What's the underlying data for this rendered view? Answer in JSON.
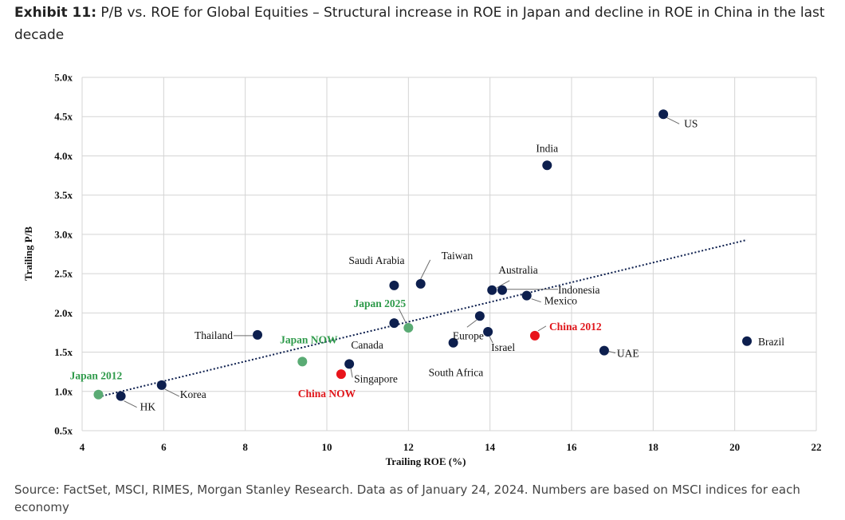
{
  "header": {
    "exhibit_label": "Exhibit 11:",
    "title": "P/B vs. ROE for Global Equities – Structural increase in ROE in Japan and decline in ROE in China in the last decade"
  },
  "footer": {
    "source": "Source: FactSet, MSCI, RIMES, Morgan Stanley Research. Data as of January 24, 2024. Numbers are based on MSCI indices for each economy"
  },
  "chart_data": {
    "type": "scatter",
    "xlabel": "Trailing ROE (%)",
    "ylabel": "Trailing P/B",
    "xlim": [
      4,
      22
    ],
    "ylim": [
      0.5,
      5.0
    ],
    "x_ticks": [
      "4",
      "6",
      "8",
      "10",
      "12",
      "14",
      "16",
      "18",
      "20",
      "22"
    ],
    "y_ticks": [
      "0.5x",
      "1.0x",
      "1.5x",
      "2.0x",
      "2.5x",
      "3.0x",
      "3.5x",
      "4.0x",
      "4.5x",
      "5.0x"
    ],
    "grid": true,
    "colors": {
      "default": "#0d1f4e",
      "japan": "#5aab74",
      "china": "#e8141b",
      "japan_label": "#2e9a4a",
      "china_label": "#e0161b"
    },
    "points": [
      {
        "label": "US",
        "x": 18.25,
        "y": 4.53,
        "group": "default"
      },
      {
        "label": "India",
        "x": 15.4,
        "y": 3.88,
        "group": "default"
      },
      {
        "label": "Taiwan",
        "x": 12.3,
        "y": 2.37,
        "group": "default"
      },
      {
        "label": "Saudi Arabia",
        "x": 11.65,
        "y": 2.35,
        "group": "default"
      },
      {
        "label": "Australia",
        "x": 14.05,
        "y": 2.29,
        "group": "default"
      },
      {
        "label": "Indonesia",
        "x": 14.3,
        "y": 2.29,
        "group": "default"
      },
      {
        "label": "Mexico",
        "x": 14.9,
        "y": 2.22,
        "group": "default"
      },
      {
        "label": "Europe",
        "x": 13.75,
        "y": 1.96,
        "group": "default"
      },
      {
        "label": "Canada",
        "x": 11.65,
        "y": 1.87,
        "group": "default"
      },
      {
        "label": "Israel",
        "x": 13.95,
        "y": 1.76,
        "group": "default"
      },
      {
        "label": "Thailand",
        "x": 8.3,
        "y": 1.72,
        "group": "default"
      },
      {
        "label": "South Africa",
        "x": 13.1,
        "y": 1.62,
        "group": "default"
      },
      {
        "label": "Brazil",
        "x": 20.3,
        "y": 1.64,
        "group": "default"
      },
      {
        "label": "UAE",
        "x": 16.8,
        "y": 1.52,
        "group": "default"
      },
      {
        "label": "Singapore",
        "x": 10.55,
        "y": 1.35,
        "group": "default"
      },
      {
        "label": "Korea",
        "x": 5.95,
        "y": 1.08,
        "group": "default"
      },
      {
        "label": "HK",
        "x": 4.95,
        "y": 0.94,
        "group": "default"
      },
      {
        "label": "Japan 2025",
        "x": 12.0,
        "y": 1.81,
        "group": "japan"
      },
      {
        "label": "Japan NOW",
        "x": 9.4,
        "y": 1.38,
        "group": "japan"
      },
      {
        "label": "Japan 2012",
        "x": 4.4,
        "y": 0.96,
        "group": "japan"
      },
      {
        "label": "China 2012",
        "x": 15.1,
        "y": 1.71,
        "group": "china"
      },
      {
        "label": "China NOW",
        "x": 10.35,
        "y": 1.22,
        "group": "china"
      }
    ],
    "trendline": {
      "style": "dotted",
      "from": [
        4.4,
        0.93
      ],
      "to": [
        20.3,
        2.93
      ]
    }
  }
}
